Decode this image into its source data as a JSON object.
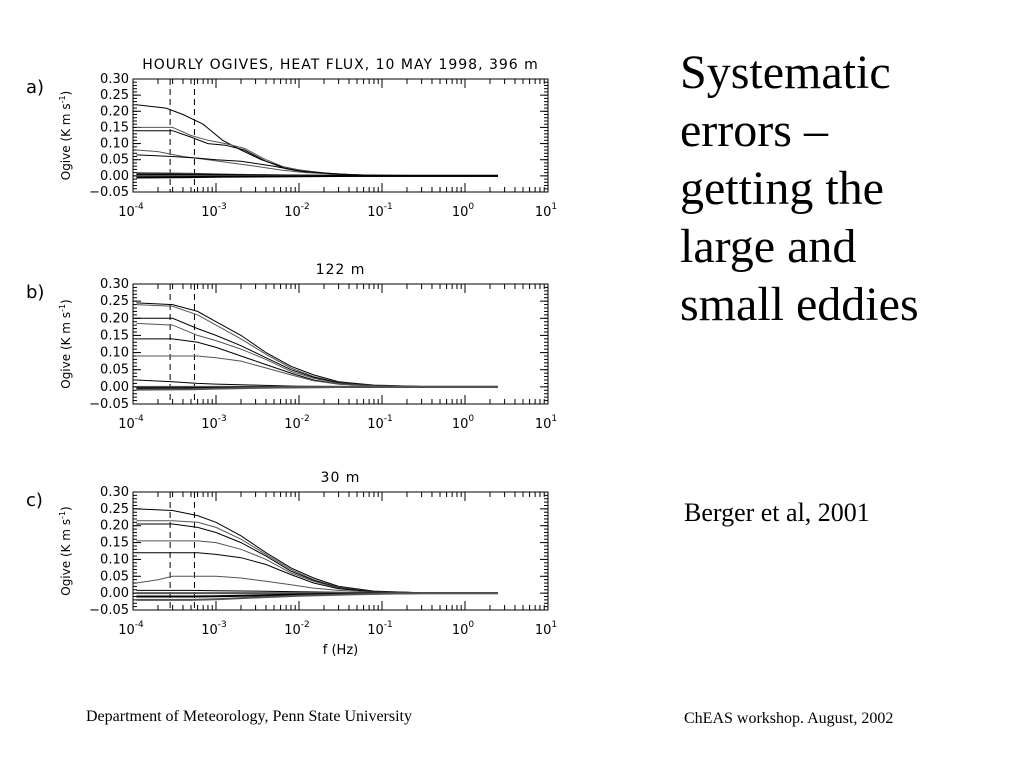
{
  "slide": {
    "title_lines": [
      "Systematic",
      "errors –",
      "getting the",
      "large and",
      "small eddies"
    ],
    "citation": "Berger et al, 2001",
    "footer_left": "Department of Meteorology, Penn State University",
    "footer_right": "ChEAS workshop. August, 2002"
  },
  "colors": {
    "background": "#ffffff",
    "lines": "#000000",
    "dark_curve": "#000000",
    "gray_curve": "#555555"
  },
  "chart_data": [
    {
      "type": "line",
      "panel_label": "a)",
      "title": "HOURLY OGIVES, HEAT FLUX, 10 MAY 1998, 396 m",
      "xlabel": "",
      "ylabel": "Ogive (K m s",
      "ylabel_sup": "-1",
      "ylabel_close": ")",
      "x_scale": "log",
      "xlim": [
        0.0001,
        10
      ],
      "ylim": [
        -0.05,
        0.3
      ],
      "x_ticks": [
        0.0001,
        0.001,
        0.01,
        0.1,
        1,
        10
      ],
      "x_tick_base": "10",
      "x_tick_exponents": [
        "-4",
        "-3",
        "-2",
        "-1",
        "0",
        "1"
      ],
      "y_ticks": [
        0.3,
        0.25,
        0.2,
        0.15,
        0.1,
        0.05,
        0.0,
        -0.05
      ],
      "y_tick_labels": [
        "0.30",
        "0.25",
        "0.20",
        "0.15",
        "0.10",
        "0.05",
        "0.00",
        "−0.05"
      ],
      "dashed_vlines": [
        0.00028,
        0.00055
      ],
      "grid": false,
      "legend": "none",
      "series": [
        {
          "x": [
            0.00011,
            0.00025,
            0.0004,
            0.0007,
            0.0012,
            0.002,
            0.0035,
            0.006,
            0.01,
            0.02,
            0.05,
            0.2,
            2.5
          ],
          "values": [
            0.22,
            0.21,
            0.19,
            0.16,
            0.11,
            0.08,
            0.05,
            0.03,
            0.018,
            0.009,
            0.003,
            0.001,
            0.0
          ]
        },
        {
          "x": [
            0.00011,
            0.0003,
            0.0005,
            0.0008,
            0.0013,
            0.0022,
            0.004,
            0.007,
            0.012,
            0.025,
            0.06,
            0.3,
            2.5
          ],
          "values": [
            0.15,
            0.15,
            0.125,
            0.11,
            0.1,
            0.085,
            0.05,
            0.025,
            0.015,
            0.007,
            0.002,
            0.0005,
            0.0
          ]
        },
        {
          "x": [
            0.00011,
            0.0003,
            0.0005,
            0.0008,
            0.0013,
            0.0022,
            0.004,
            0.007,
            0.012,
            0.025,
            0.06,
            0.3,
            2.5
          ],
          "values": [
            0.14,
            0.14,
            0.12,
            0.1,
            0.095,
            0.08,
            0.045,
            0.022,
            0.012,
            0.006,
            0.002,
            0.0005,
            0.0
          ]
        },
        {
          "x": [
            0.00011,
            0.0002,
            0.0004,
            0.0008,
            0.0015,
            0.003,
            0.006,
            0.012,
            0.03,
            0.1,
            2.5
          ],
          "values": [
            0.08,
            0.075,
            0.06,
            0.05,
            0.04,
            0.03,
            0.018,
            0.01,
            0.005,
            0.001,
            0.0
          ]
        },
        {
          "x": [
            0.00011,
            0.0003,
            0.0006,
            0.001,
            0.002,
            0.005,
            0.01,
            0.03,
            0.1,
            2.5
          ],
          "values": [
            0.065,
            0.06,
            0.055,
            0.05,
            0.045,
            0.03,
            0.015,
            0.005,
            0.001,
            0.0
          ]
        },
        {
          "x": [
            0.00011,
            0.0005,
            0.001,
            0.003,
            0.01,
            0.05,
            2.5
          ],
          "values": [
            0.01,
            0.008,
            0.006,
            0.004,
            0.002,
            0.001,
            0.0
          ]
        },
        {
          "x": [
            0.00011,
            0.0005,
            0.001,
            0.003,
            0.01,
            0.05,
            2.5
          ],
          "values": [
            0.005,
            0.004,
            0.003,
            0.002,
            0.001,
            0.0,
            0.0
          ]
        },
        {
          "x": [
            0.00011,
            0.0005,
            0.001,
            0.003,
            0.01,
            0.05,
            2.5
          ],
          "values": [
            0.0,
            0.0,
            0.0,
            0.0,
            0.0,
            0.0,
            0.0
          ]
        },
        {
          "x": [
            0.00011,
            0.0005,
            0.001,
            0.003,
            0.01,
            0.05,
            2.5
          ],
          "values": [
            -0.005,
            -0.004,
            -0.003,
            -0.002,
            -0.001,
            0.0,
            0.0
          ]
        }
      ]
    },
    {
      "type": "line",
      "panel_label": "b)",
      "title": "122 m",
      "xlabel": "",
      "ylabel": "Ogive (K m s",
      "ylabel_sup": "-1",
      "ylabel_close": ")",
      "x_scale": "log",
      "xlim": [
        0.0001,
        10
      ],
      "ylim": [
        -0.05,
        0.3
      ],
      "x_ticks": [
        0.0001,
        0.001,
        0.01,
        0.1,
        1,
        10
      ],
      "x_tick_base": "10",
      "x_tick_exponents": [
        "-4",
        "-3",
        "-2",
        "-1",
        "0",
        "1"
      ],
      "y_ticks": [
        0.3,
        0.25,
        0.2,
        0.15,
        0.1,
        0.05,
        0.0,
        -0.05
      ],
      "y_tick_labels": [
        "0.30",
        "0.25",
        "0.20",
        "0.15",
        "0.10",
        "0.05",
        "0.00",
        "−0.05"
      ],
      "dashed_vlines": [
        0.00028,
        0.00055
      ],
      "grid": false,
      "legend": "none",
      "series": [
        {
          "x": [
            0.00011,
            0.0003,
            0.0006,
            0.001,
            0.002,
            0.004,
            0.008,
            0.015,
            0.03,
            0.08,
            0.3,
            2.5
          ],
          "values": [
            0.245,
            0.24,
            0.22,
            0.19,
            0.15,
            0.1,
            0.06,
            0.035,
            0.015,
            0.005,
            0.001,
            0.0
          ]
        },
        {
          "x": [
            0.00011,
            0.0003,
            0.0006,
            0.001,
            0.002,
            0.004,
            0.008,
            0.015,
            0.03,
            0.08,
            0.3,
            2.5
          ],
          "values": [
            0.24,
            0.235,
            0.21,
            0.18,
            0.14,
            0.095,
            0.055,
            0.03,
            0.013,
            0.004,
            0.001,
            0.0
          ]
        },
        {
          "x": [
            0.00011,
            0.0003,
            0.0006,
            0.001,
            0.002,
            0.004,
            0.008,
            0.015,
            0.03,
            0.08,
            0.3,
            2.5
          ],
          "values": [
            0.2,
            0.2,
            0.17,
            0.15,
            0.12,
            0.085,
            0.05,
            0.028,
            0.012,
            0.004,
            0.001,
            0.0
          ]
        },
        {
          "x": [
            0.00011,
            0.0003,
            0.0006,
            0.001,
            0.002,
            0.004,
            0.008,
            0.015,
            0.03,
            0.08,
            0.3,
            2.5
          ],
          "values": [
            0.185,
            0.18,
            0.15,
            0.135,
            0.11,
            0.08,
            0.045,
            0.025,
            0.01,
            0.003,
            0.0005,
            0.0
          ]
        },
        {
          "x": [
            0.00011,
            0.0003,
            0.0006,
            0.001,
            0.002,
            0.004,
            0.008,
            0.015,
            0.03,
            0.08,
            0.3,
            2.5
          ],
          "values": [
            0.14,
            0.14,
            0.13,
            0.115,
            0.09,
            0.065,
            0.04,
            0.02,
            0.008,
            0.003,
            0.0005,
            0.0
          ]
        },
        {
          "x": [
            0.00011,
            0.0003,
            0.0006,
            0.001,
            0.002,
            0.004,
            0.008,
            0.015,
            0.03,
            0.08,
            0.3,
            2.5
          ],
          "values": [
            0.09,
            0.09,
            0.09,
            0.085,
            0.075,
            0.055,
            0.035,
            0.018,
            0.008,
            0.003,
            0.0005,
            0.0
          ]
        },
        {
          "x": [
            0.00011,
            0.0003,
            0.0006,
            0.001,
            0.003,
            0.01,
            0.05,
            2.5
          ],
          "values": [
            0.02,
            0.015,
            0.01,
            0.008,
            0.005,
            0.002,
            0.001,
            0.0
          ]
        },
        {
          "x": [
            0.00011,
            0.0005,
            0.001,
            0.003,
            0.01,
            0.05,
            2.5
          ],
          "values": [
            0.0,
            0.0,
            0.0,
            0.0,
            0.0,
            0.0,
            0.0
          ]
        },
        {
          "x": [
            0.00011,
            0.0005,
            0.001,
            0.003,
            0.01,
            0.05,
            2.5
          ],
          "values": [
            -0.004,
            -0.004,
            -0.003,
            -0.002,
            -0.001,
            0.0,
            0.0
          ]
        },
        {
          "x": [
            0.00011,
            0.0005,
            0.001,
            0.003,
            0.01,
            0.05,
            2.5
          ],
          "values": [
            -0.008,
            -0.007,
            -0.005,
            -0.003,
            -0.001,
            0.0,
            0.0
          ]
        }
      ]
    },
    {
      "type": "line",
      "panel_label": "c)",
      "title": "30 m",
      "xlabel": "f (Hz)",
      "ylabel": "Ogive (K m s",
      "ylabel_sup": "-1",
      "ylabel_close": ")",
      "x_scale": "log",
      "xlim": [
        0.0001,
        10
      ],
      "ylim": [
        -0.05,
        0.3
      ],
      "x_ticks": [
        0.0001,
        0.001,
        0.01,
        0.1,
        1,
        10
      ],
      "x_tick_base": "10",
      "x_tick_exponents": [
        "-4",
        "-3",
        "-2",
        "-1",
        "0",
        "1"
      ],
      "y_ticks": [
        0.3,
        0.25,
        0.2,
        0.15,
        0.1,
        0.05,
        0.0,
        -0.05
      ],
      "y_tick_labels": [
        "0.30",
        "0.25",
        "0.20",
        "0.15",
        "0.10",
        "0.05",
        "0.00",
        "−0.05"
      ],
      "dashed_vlines": [
        0.00028,
        0.00055
      ],
      "grid": false,
      "legend": "none",
      "series": [
        {
          "x": [
            0.00011,
            0.0003,
            0.0006,
            0.001,
            0.002,
            0.004,
            0.008,
            0.015,
            0.03,
            0.08,
            0.3,
            2.5
          ],
          "values": [
            0.25,
            0.245,
            0.23,
            0.21,
            0.17,
            0.12,
            0.075,
            0.045,
            0.02,
            0.006,
            0.001,
            0.0
          ]
        },
        {
          "x": [
            0.00011,
            0.0003,
            0.0006,
            0.001,
            0.002,
            0.004,
            0.008,
            0.015,
            0.03,
            0.08,
            0.3,
            2.5
          ],
          "values": [
            0.215,
            0.215,
            0.21,
            0.195,
            0.16,
            0.115,
            0.07,
            0.04,
            0.018,
            0.005,
            0.001,
            0.0
          ]
        },
        {
          "x": [
            0.00011,
            0.0003,
            0.0006,
            0.001,
            0.002,
            0.004,
            0.008,
            0.015,
            0.03,
            0.08,
            0.3,
            2.5
          ],
          "values": [
            0.205,
            0.205,
            0.195,
            0.18,
            0.15,
            0.11,
            0.065,
            0.038,
            0.016,
            0.005,
            0.001,
            0.0
          ]
        },
        {
          "x": [
            0.00011,
            0.0003,
            0.0006,
            0.001,
            0.002,
            0.004,
            0.008,
            0.015,
            0.03,
            0.08,
            0.3,
            2.5
          ],
          "values": [
            0.155,
            0.155,
            0.155,
            0.15,
            0.13,
            0.1,
            0.06,
            0.035,
            0.015,
            0.004,
            0.001,
            0.0
          ]
        },
        {
          "x": [
            0.00011,
            0.0003,
            0.0006,
            0.001,
            0.002,
            0.004,
            0.008,
            0.015,
            0.03,
            0.08,
            0.3,
            2.5
          ],
          "values": [
            0.12,
            0.12,
            0.12,
            0.115,
            0.105,
            0.085,
            0.055,
            0.03,
            0.013,
            0.004,
            0.001,
            0.0
          ]
        },
        {
          "x": [
            0.00011,
            0.0002,
            0.0003,
            0.0006,
            0.001,
            0.002,
            0.004,
            0.008,
            0.015,
            0.03,
            0.08,
            0.3,
            2.5
          ],
          "values": [
            0.03,
            0.04,
            0.05,
            0.05,
            0.05,
            0.045,
            0.035,
            0.025,
            0.015,
            0.008,
            0.003,
            0.0005,
            0.0
          ]
        },
        {
          "x": [
            0.00011,
            0.0005,
            0.001,
            0.003,
            0.01,
            0.05,
            0.3,
            2.5
          ],
          "values": [
            0.008,
            0.008,
            0.007,
            0.006,
            0.004,
            0.002,
            0.0,
            0.0
          ]
        },
        {
          "x": [
            0.00011,
            0.0005,
            0.001,
            0.003,
            0.01,
            0.05,
            0.3,
            2.5
          ],
          "values": [
            0.0,
            0.0,
            0.0,
            0.0,
            0.0,
            0.0,
            0.0,
            0.0
          ]
        },
        {
          "x": [
            0.00011,
            0.0005,
            0.001,
            0.003,
            0.01,
            0.05,
            0.3,
            2.5
          ],
          "values": [
            -0.01,
            -0.01,
            -0.009,
            -0.007,
            -0.004,
            -0.002,
            0.0,
            0.0
          ]
        },
        {
          "x": [
            0.00011,
            0.0005,
            0.001,
            0.003,
            0.01,
            0.05,
            0.3,
            2.5
          ],
          "values": [
            -0.02,
            -0.02,
            -0.018,
            -0.013,
            -0.008,
            -0.003,
            0.0,
            0.0
          ]
        }
      ]
    }
  ]
}
